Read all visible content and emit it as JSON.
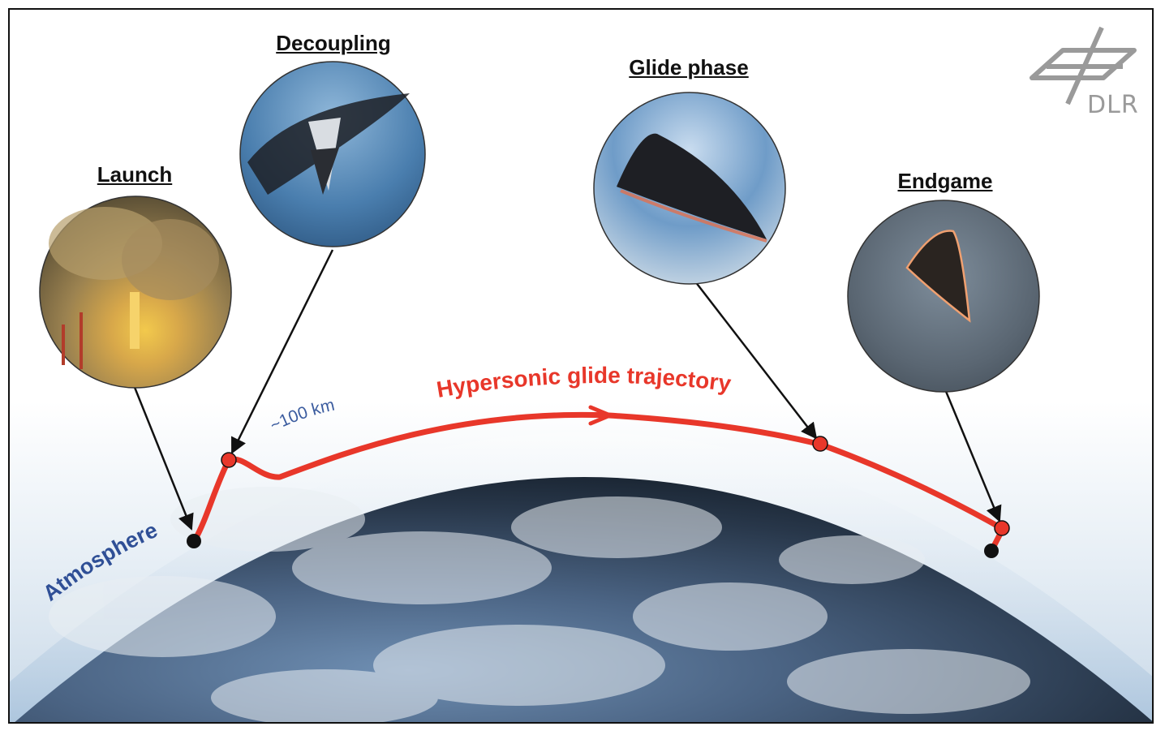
{
  "phases": [
    {
      "title": "Launch"
    },
    {
      "title": "Decoupling"
    },
    {
      "title": "Glide phase"
    },
    {
      "title": "Endgame"
    }
  ],
  "labels": {
    "trajectory": "Hypersonic glide trajectory",
    "altitude": "~100 km",
    "atmosphere": "Atmosphere"
  },
  "logo": {
    "text": "DLR",
    "color": "#9a9a9a"
  },
  "colors": {
    "trajectory": "#e8372a",
    "atmosphere_text": "#2f4f96",
    "altitude_text": "#3b5c9f",
    "marker_red": "#e8372a",
    "marker_black": "#111111"
  },
  "icons": [
    "launch-photo",
    "decoupling-photo",
    "glide-phase-photo",
    "endgame-photo",
    "dlr-logo-icon"
  ]
}
